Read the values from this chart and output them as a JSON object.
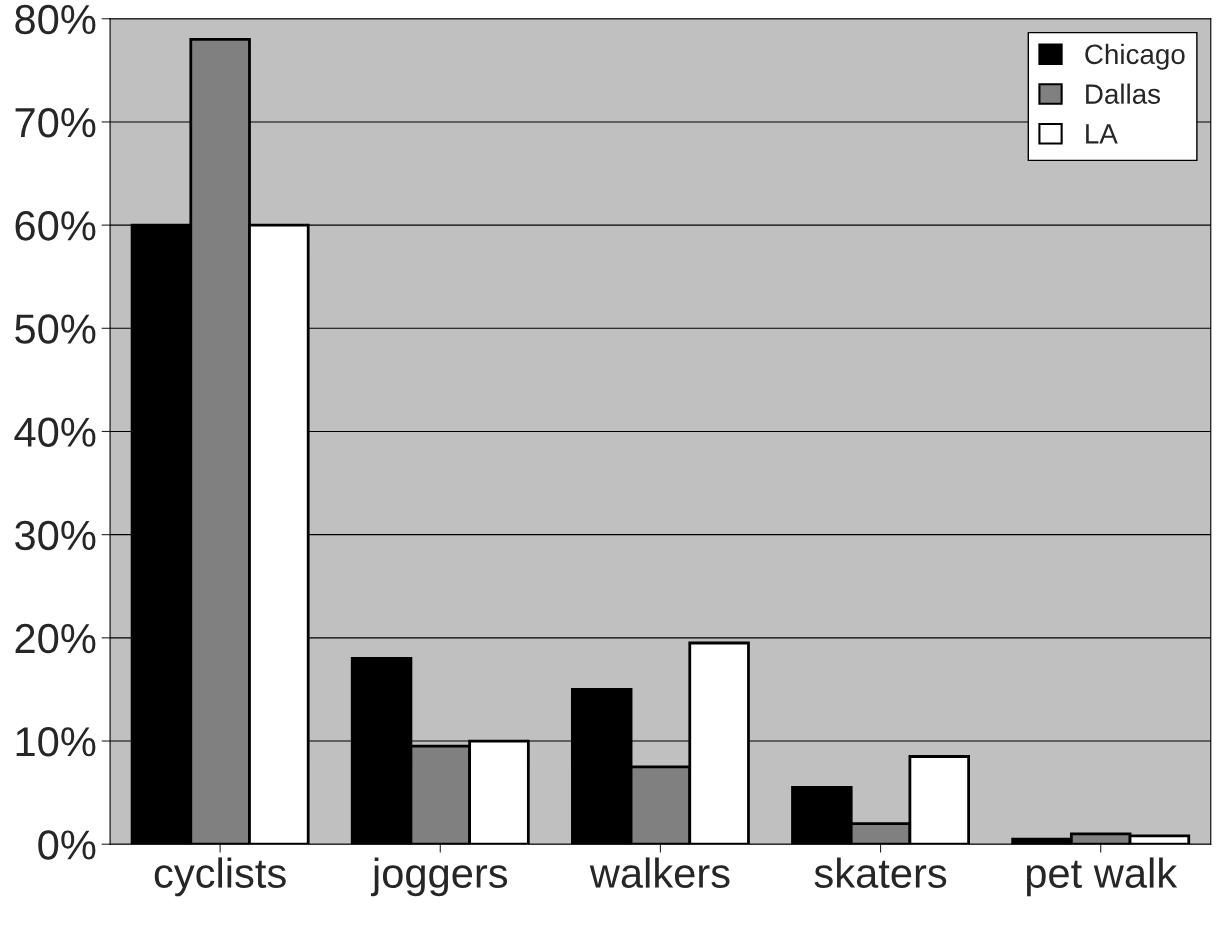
{
  "chart_data": {
    "type": "bar",
    "categories": [
      "cyclists",
      "joggers",
      "walkers",
      "skaters",
      "pet walk"
    ],
    "series": [
      {
        "name": "Chicago",
        "color": "#000000",
        "values": [
          60,
          18,
          15,
          5.5,
          0.5
        ]
      },
      {
        "name": "Dallas",
        "color": "#808080",
        "values": [
          78,
          9.5,
          7.5,
          2,
          1
        ]
      },
      {
        "name": "LA",
        "color": "#ffffff",
        "values": [
          60,
          10,
          19.5,
          8.5,
          0.8
        ]
      }
    ],
    "ylim": [
      0,
      80
    ],
    "yticks": [
      {
        "value": 0,
        "label": "0%"
      },
      {
        "value": 10,
        "label": "10%"
      },
      {
        "value": 20,
        "label": "20%"
      },
      {
        "value": 30,
        "label": "30%"
      },
      {
        "value": 40,
        "label": "40%"
      },
      {
        "value": 50,
        "label": "50%"
      },
      {
        "value": 60,
        "label": "60%"
      },
      {
        "value": 70,
        "label": "70%"
      },
      {
        "value": 80,
        "label": "80%"
      }
    ],
    "grid": "y",
    "legend": "top right"
  }
}
